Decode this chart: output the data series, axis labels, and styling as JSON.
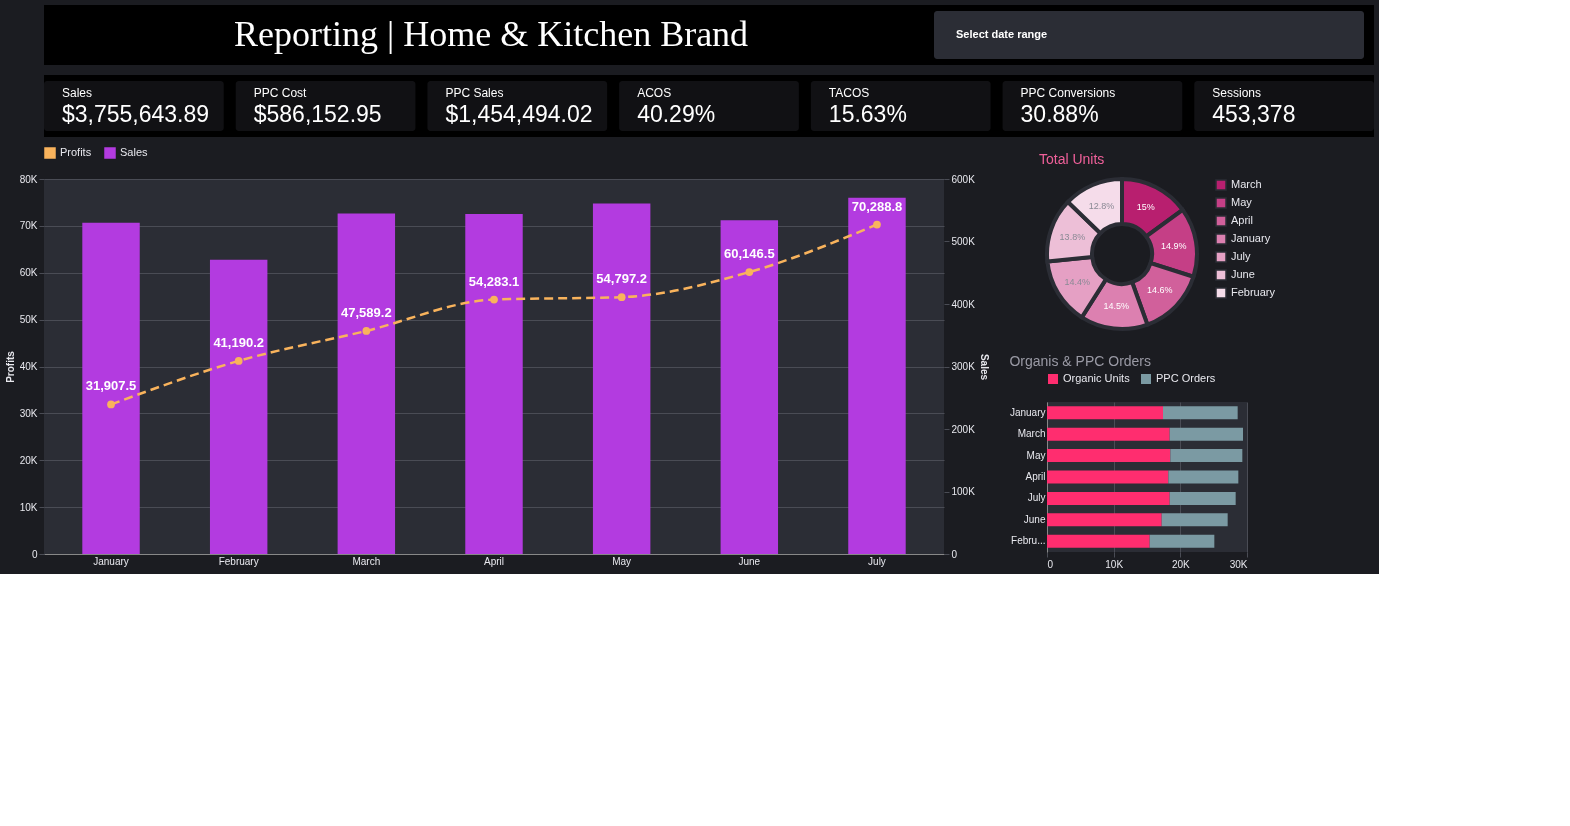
{
  "chart_data": [
    {
      "type": "other",
      "title": "Reporting | Home & Kitchen Brand",
      "annotations": [
        "Select date range"
      ]
    },
    {
      "type": "other",
      "annotations": [
        "Sales",
        "$3,755,643.89",
        "PPC Cost",
        "$586,152.95",
        "PPC Sales",
        "$1,454,494.02",
        "ACOS",
        "40.29%",
        "TACOS",
        "15.63%",
        "PPC Conversions",
        "30.88%",
        "Sessions",
        "453,378"
      ]
    },
    {
      "type": "bar",
      "categories": [
        "January",
        "February",
        "March",
        "April",
        "May",
        "June",
        "July"
      ],
      "ylabel": "Profits",
      "y2label": "Sales",
      "ylim": [
        0,
        80000
      ],
      "yticks": [
        0,
        {
          "value": 10000,
          "label": "10K"
        },
        {
          "value": 20000,
          "label": "20K"
        },
        {
          "value": 30000,
          "label": "30K"
        },
        {
          "value": 40000,
          "label": "40K"
        },
        {
          "value": 50000,
          "label": "50K"
        },
        {
          "value": 60000,
          "label": "60K"
        },
        {
          "value": 70000,
          "label": "70K"
        },
        {
          "value": 80000,
          "label": "80K"
        }
      ],
      "y2lim": [
        0,
        600000
      ],
      "y2ticks": [
        0,
        {
          "value": 100000,
          "label": "100K"
        },
        {
          "value": 200000,
          "label": "200K"
        },
        {
          "value": 300000,
          "label": "300K"
        },
        {
          "value": 400000,
          "label": "400K"
        },
        {
          "value": 500000,
          "label": "500K"
        },
        {
          "value": 600000,
          "label": "600K"
        }
      ],
      "grid": "y",
      "legend": "top left",
      "series": [
        {
          "name": "Profits",
          "type": "line",
          "color": "#f9b35c",
          "marker": "circle",
          "line_style": "dashed",
          "values": [
            31907.5,
            41190.2,
            47589.2,
            54283.1,
            54797.2,
            60146.5,
            70288.8
          ],
          "value_labels": [
            "31,907.5",
            "41,190.2",
            "47,589.2",
            "54,283.1",
            "54,797.2",
            "60,146.5",
            "70,288.8"
          ]
        },
        {
          "name": "Sales",
          "type": "bar",
          "axis": "y2",
          "color": "#b33be0",
          "values": [
            530000,
            471000,
            545000,
            544000,
            561000,
            534000,
            570000
          ]
        }
      ]
    },
    {
      "type": "donut",
      "title": "Total Units",
      "categories": [
        "March",
        "May",
        "April",
        "January",
        "July",
        "June",
        "February"
      ],
      "values": [
        15,
        14.9,
        14.6,
        14.5,
        14.4,
        13.8,
        12.8
      ],
      "colors": [
        "#b81f6f",
        "#c53f86",
        "#d1609b",
        "#dc80b0",
        "#e5a0c4",
        "#edbfd7",
        "#f5dcea"
      ],
      "value_labels": [
        "15%",
        "14.9%",
        "14.6%",
        "14.5%",
        "14.4%",
        "13.8%",
        "12.8%"
      ],
      "legend": "right"
    },
    {
      "type": "bar",
      "orientation": "horizontal",
      "stacked": true,
      "title": "Organis & PPC Orders",
      "categories": [
        "January",
        "March",
        "May",
        "April",
        "July",
        "June",
        "Febru..."
      ],
      "xlim": [
        0,
        30000
      ],
      "xticks": [
        0,
        {
          "value": 10000,
          "label": "10K"
        },
        {
          "value": 20000,
          "label": "20K"
        },
        {
          "value": 30000,
          "label": "30K"
        }
      ],
      "grid": "x",
      "legend": "top",
      "series": [
        {
          "name": "Organic Units",
          "color": "#ff2d6f",
          "values": [
            17400,
            18400,
            18500,
            18200,
            18400,
            17200,
            15400
          ]
        },
        {
          "name": "PPC Orders",
          "color": "#7b9aa3",
          "values": [
            11200,
            11000,
            10800,
            10500,
            9900,
            9900,
            9700
          ]
        }
      ]
    }
  ]
}
